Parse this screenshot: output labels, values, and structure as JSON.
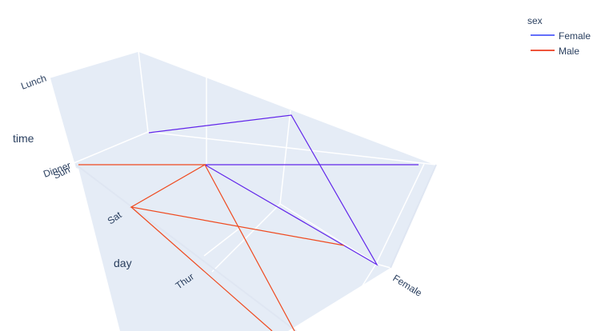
{
  "chart_data": {
    "type": "line",
    "projection": "3d",
    "axes": {
      "x": {
        "title": "",
        "ticks": [
          "Female"
        ]
      },
      "y": {
        "title": "day",
        "ticks": [
          "Sun",
          "Sat",
          "Thur"
        ]
      },
      "z": {
        "title": "time",
        "ticks": [
          "Dinner",
          "Lunch"
        ]
      }
    },
    "legend": {
      "title": "sex",
      "placement": "top-right",
      "items": [
        {
          "name": "Female",
          "color": "#636efa"
        },
        {
          "name": "Male",
          "color": "#EF553B"
        }
      ]
    },
    "colors": {
      "Female": "#6125ea",
      "Male": "#ef4a1f",
      "pane": "#e5ecf6",
      "grid": "#ffffff"
    }
  }
}
